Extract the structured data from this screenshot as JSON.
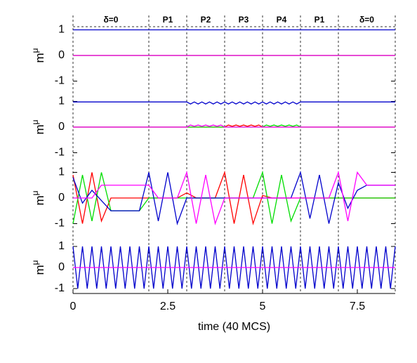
{
  "chart_data": [
    {
      "type": "line",
      "ylabel": "m",
      "ylabel_superscript": "μ",
      "ylim": [
        -1.15,
        1.15
      ],
      "yticks": [
        -1,
        0,
        1
      ],
      "xlim": [
        0,
        8.5
      ],
      "phases": [
        {
          "label": "δ=0",
          "start": 0,
          "end": 2
        },
        {
          "label": "P1",
          "start": 2,
          "end": 3
        },
        {
          "label": "P2",
          "start": 3,
          "end": 4
        },
        {
          "label": "P3",
          "start": 4,
          "end": 5
        },
        {
          "label": "P4",
          "start": 5,
          "end": 6
        },
        {
          "label": "P1",
          "start": 6,
          "end": 7
        },
        {
          "label": "δ=0",
          "start": 7,
          "end": 8.5
        }
      ],
      "x": [
        0,
        8.5
      ],
      "series": [
        {
          "color": "#ff0000",
          "values": [
            0,
            0
          ]
        },
        {
          "color": "#00dd00",
          "values": [
            0,
            0
          ]
        },
        {
          "color": "#0000cc",
          "values": [
            1,
            1
          ]
        },
        {
          "color": "#ff00ff",
          "values": [
            0,
            0
          ]
        }
      ]
    },
    {
      "type": "line",
      "ylabel": "m",
      "ylabel_superscript": "μ",
      "ylim": [
        -1.15,
        1.15
      ],
      "yticks": [
        -1,
        0,
        1
      ],
      "xlim": [
        0,
        8.5
      ],
      "x": [
        0,
        2.9,
        3.0,
        3.1,
        3.2,
        3.3,
        3.4,
        3.5,
        3.6,
        3.7,
        3.8,
        3.9,
        4.0,
        4.1,
        4.2,
        4.3,
        4.4,
        4.5,
        4.6,
        4.7,
        4.8,
        4.9,
        5.0,
        5.1,
        5.2,
        5.3,
        5.4,
        5.5,
        5.6,
        5.7,
        5.8,
        5.9,
        6.0,
        6.1,
        8.5
      ],
      "series": [
        {
          "color": "#ff0000",
          "values": [
            0,
            0,
            0,
            0,
            0,
            0,
            0,
            0,
            0,
            0,
            0,
            0,
            0,
            0.08,
            0.03,
            0.08,
            0.03,
            0.08,
            0.03,
            0.08,
            0.03,
            0.08,
            0,
            0,
            0,
            0,
            0,
            0,
            0,
            0,
            0,
            0,
            0,
            0,
            0
          ]
        },
        {
          "color": "#00dd00",
          "values": [
            0,
            0,
            0,
            0,
            0,
            0,
            0,
            0,
            0,
            0,
            0,
            0,
            0,
            0,
            0,
            0,
            0,
            0,
            0,
            0,
            0,
            0,
            0,
            0.08,
            0.03,
            0.08,
            0.03,
            0.08,
            0.03,
            0.08,
            0.03,
            0.08,
            0,
            0,
            0
          ]
        },
        {
          "color": "#0000cc",
          "values": [
            0.98,
            0.98,
            0.98,
            0.9,
            0.98,
            0.9,
            0.98,
            0.9,
            0.98,
            0.9,
            0.98,
            0.9,
            0.98,
            0.9,
            0.98,
            0.9,
            0.98,
            0.9,
            0.98,
            0.9,
            0.98,
            0.9,
            0.98,
            0.9,
            0.98,
            0.9,
            0.98,
            0.9,
            0.98,
            0.9,
            0.98,
            0.9,
            0.98,
            0.98,
            0.98
          ]
        },
        {
          "color": "#ff00ff",
          "values": [
            0,
            0,
            0,
            0.08,
            0.03,
            0.08,
            0.03,
            0.08,
            0.03,
            0.08,
            0.03,
            0.08,
            0,
            0,
            0,
            0,
            0,
            0,
            0,
            0,
            0,
            0,
            0,
            0,
            0,
            0,
            0,
            0,
            0,
            0,
            0,
            0,
            0,
            0,
            0
          ]
        }
      ]
    },
    {
      "type": "line",
      "ylabel": "m",
      "ylabel_superscript": "μ",
      "ylim": [
        -1.15,
        1.15
      ],
      "yticks": [
        -1,
        0,
        1
      ],
      "xlim": [
        0,
        8.5
      ],
      "x": [
        0,
        0.25,
        0.5,
        0.75,
        1,
        1.25,
        1.5,
        1.75,
        2,
        2.25,
        2.5,
        2.75,
        3,
        3.25,
        3.5,
        3.75,
        4,
        4.25,
        4.5,
        4.75,
        5,
        5.25,
        5.5,
        5.75,
        6,
        6.25,
        6.5,
        6.75,
        7,
        7.25,
        7.5,
        7.75,
        8,
        8.25,
        8.5
      ],
      "series": [
        {
          "color": "#ff0000",
          "values": [
            0.9,
            -1,
            1,
            -0.9,
            0,
            0,
            0,
            0,
            0,
            0,
            0,
            0,
            0.2,
            0,
            0,
            0,
            1,
            -1,
            0.9,
            -1,
            0.1,
            0,
            0,
            0,
            0,
            0,
            0,
            0,
            0,
            0,
            0,
            0,
            0,
            0,
            0
          ]
        },
        {
          "color": "#00dd00",
          "values": [
            -1,
            0.9,
            -0.9,
            1,
            -0.5,
            -0.5,
            -0.5,
            -0.5,
            0,
            0,
            0,
            0,
            0,
            0,
            0,
            0,
            0,
            0,
            0,
            0,
            1,
            -1,
            0.9,
            -0.9,
            0,
            0,
            0,
            0,
            0,
            0,
            0,
            0,
            0,
            0,
            0
          ]
        },
        {
          "color": "#0000cc",
          "values": [
            0.8,
            -0.2,
            0.3,
            -0.1,
            -0.5,
            -0.5,
            -0.5,
            -0.5,
            1,
            -0.9,
            1,
            -1,
            0,
            0,
            0,
            0,
            0,
            0,
            0,
            0,
            0,
            0,
            0,
            0,
            1,
            -0.8,
            0.9,
            -1,
            0.6,
            -0.4,
            0.3,
            0.5,
            0.5,
            0.5,
            0.5
          ]
        },
        {
          "color": "#ff00ff",
          "values": [
            0,
            0,
            0,
            0.5,
            0.5,
            0.5,
            0.5,
            0.5,
            0.5,
            0,
            0,
            0,
            1,
            -1,
            0.9,
            -1,
            0,
            0,
            0,
            0,
            0,
            0,
            0,
            0,
            0,
            0,
            0,
            0,
            1,
            -0.9,
            1,
            0.5,
            0.5,
            0.5,
            0.5
          ]
        }
      ]
    },
    {
      "type": "line",
      "ylabel": "m",
      "ylabel_superscript": "μ",
      "ylim": [
        -1.15,
        1.15
      ],
      "yticks": [
        -1,
        0,
        1
      ],
      "xlim": [
        0,
        8.5
      ],
      "xticks": [
        0,
        2.5,
        5,
        7.5
      ],
      "xlabel": "time (40 MCS)",
      "x": [
        0,
        0.125,
        0.25,
        0.375,
        0.5,
        0.625,
        0.75,
        0.875,
        1,
        1.125,
        1.25,
        1.375,
        1.5,
        1.625,
        1.75,
        1.875,
        2,
        2.125,
        2.25,
        2.375,
        2.5,
        2.625,
        2.75,
        2.875,
        3,
        3.125,
        3.25,
        3.375,
        3.5,
        3.625,
        3.75,
        3.875,
        4,
        4.125,
        4.25,
        4.375,
        4.5,
        4.625,
        4.75,
        4.875,
        5,
        5.125,
        5.25,
        5.375,
        5.5,
        5.625,
        5.75,
        5.875,
        6,
        6.125,
        6.25,
        6.375,
        6.5,
        6.625,
        6.75,
        6.875,
        7,
        7.125,
        7.25,
        7.375,
        7.5,
        7.625,
        7.75,
        7.875,
        8,
        8.125,
        8.25,
        8.375,
        8.5
      ],
      "series": [
        {
          "color": "#0000cc",
          "values": [
            1,
            -1,
            1,
            -1,
            1,
            -1,
            1,
            -1,
            1,
            -1,
            1,
            -1,
            1,
            -1,
            1,
            -1,
            1,
            -1,
            1,
            -1,
            1,
            -1,
            1,
            -1,
            1,
            -1,
            1,
            -1,
            1,
            -1,
            1,
            -1,
            1,
            -1,
            1,
            -1,
            1,
            -1,
            1,
            -1,
            1,
            -1,
            1,
            -1,
            1,
            -1,
            1,
            -1,
            1,
            -1,
            1,
            -1,
            1,
            -1,
            1,
            -1,
            1,
            -1,
            1,
            -1,
            1,
            -1,
            1,
            -1,
            1,
            -1,
            1,
            -1,
            1
          ]
        },
        {
          "color": "#ff00ff",
          "values": [
            0,
            0,
            0,
            0,
            0,
            0,
            0,
            0,
            0,
            0,
            0,
            0,
            0,
            0,
            0,
            0,
            0,
            0,
            0,
            0,
            0,
            0,
            0,
            0,
            0,
            0,
            0,
            0,
            0,
            0,
            0,
            0,
            0,
            0,
            0,
            0,
            0,
            0,
            0,
            0,
            0,
            0,
            0,
            0,
            0,
            0,
            0,
            0,
            0,
            0,
            0,
            0,
            0,
            0,
            0,
            0,
            0,
            0,
            0,
            0,
            0,
            0,
            0,
            0,
            0,
            0,
            0,
            0,
            0
          ]
        }
      ]
    }
  ]
}
